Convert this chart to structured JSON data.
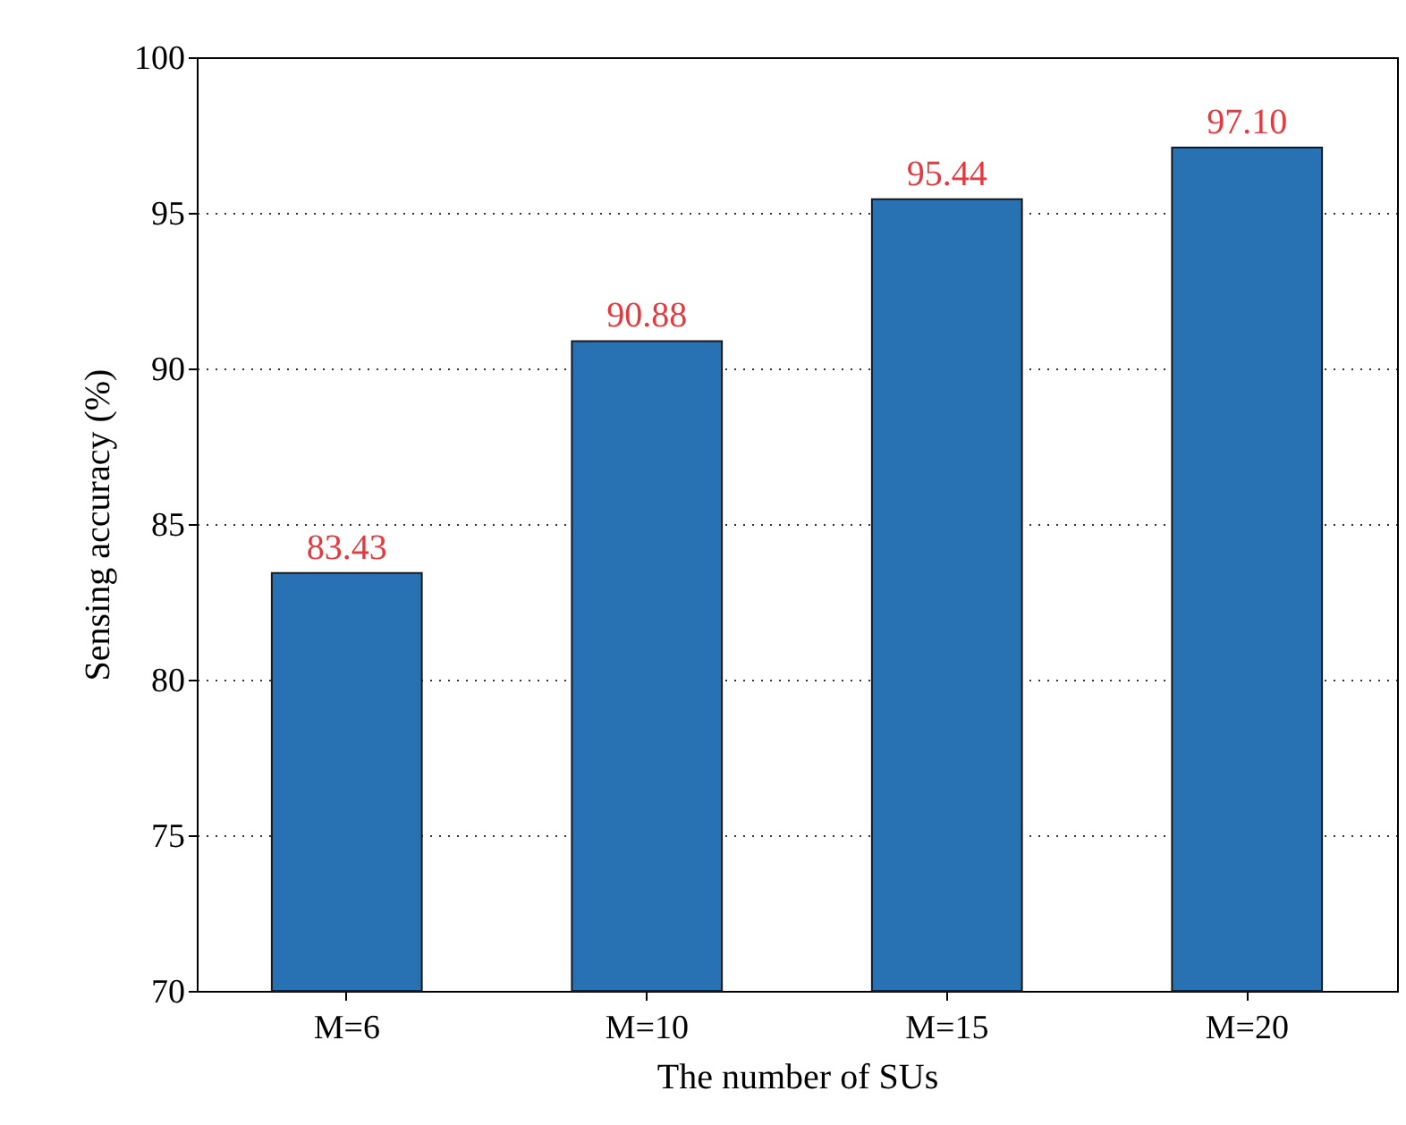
{
  "chart_data": {
    "type": "bar",
    "xlabel": "The number of SUs",
    "ylabel": "Sensing accuracy (%)",
    "categories": [
      "M=6",
      "M=10",
      "M=15",
      "M=20"
    ],
    "values": [
      83.43,
      90.88,
      95.44,
      97.1
    ],
    "value_labels": [
      "83.43",
      "90.88",
      "95.44",
      "97.10"
    ],
    "color": "#2872b4",
    "ylim": [
      70,
      100
    ],
    "yticks": [
      70,
      75,
      80,
      85,
      90,
      95,
      100
    ],
    "grid": "y"
  }
}
